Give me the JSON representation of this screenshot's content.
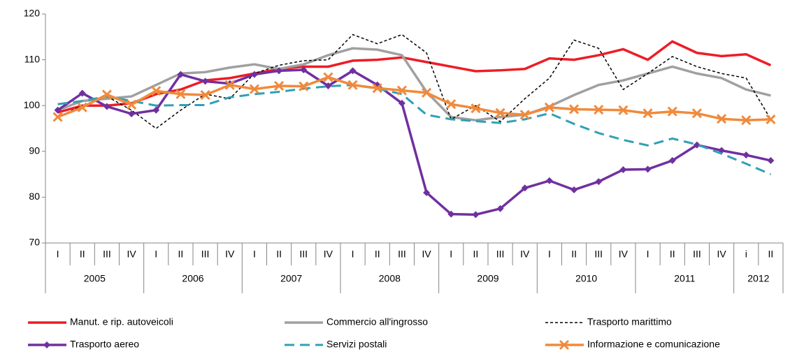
{
  "chart_data": {
    "type": "line",
    "category_groups": [
      {
        "label": "2005",
        "categories": [
          "I",
          "II",
          "III",
          "IV"
        ]
      },
      {
        "label": "2006",
        "categories": [
          "I",
          "II",
          "III",
          "IV"
        ]
      },
      {
        "label": "2007",
        "categories": [
          "I",
          "II",
          "III",
          "IV"
        ]
      },
      {
        "label": "2008",
        "categories": [
          "I",
          "II",
          "III",
          "IV"
        ]
      },
      {
        "label": "2009",
        "categories": [
          "I",
          "II",
          "III",
          "IV"
        ]
      },
      {
        "label": "2010",
        "categories": [
          "I",
          "II",
          "III",
          "IV"
        ]
      },
      {
        "label": "2011",
        "categories": [
          "I",
          "II",
          "III",
          "IV"
        ]
      },
      {
        "label": "2012",
        "categories": [
          "i",
          "II"
        ]
      }
    ],
    "series": [
      {
        "name": "Manut. e rip. autoveicoli",
        "color": "#ee1c25",
        "line_style": "solid",
        "values": [
          98.5,
          100,
          100,
          100.5,
          102.5,
          103.5,
          105.5,
          106,
          107,
          108,
          108.5,
          108.5,
          109.8,
          110,
          110.5,
          109.5,
          108.5,
          107.5,
          107.7,
          108,
          110.3,
          110,
          111,
          112.3,
          110,
          114,
          111.5,
          110.8,
          111.2,
          108.8
        ]
      },
      {
        "name": "Commercio all'ingrosso",
        "color": "#a0a0a0",
        "line_style": "solid",
        "values": [
          99,
          101,
          101.5,
          102,
          104.5,
          107,
          107.3,
          108.3,
          109,
          108,
          109,
          111,
          112.5,
          112.2,
          111,
          103,
          97.5,
          96.8,
          97.5,
          98,
          99.8,
          102.3,
          104.5,
          105.5,
          107,
          108.5,
          107,
          106,
          103.5,
          102.2
        ]
      },
      {
        "name": "Trasporto marittimo",
        "color": "#000000",
        "line_style": "dotted",
        "values": [
          97.5,
          100,
          102,
          99,
          95,
          99,
          102.5,
          101.5,
          107,
          108.8,
          109.8,
          110,
          115.5,
          113.5,
          115.5,
          111.5,
          97,
          100,
          96.5,
          101.5,
          106,
          114.3,
          112.5,
          103.5,
          107,
          110.7,
          108.5,
          107,
          106,
          97
        ]
      },
      {
        "name": "Trasporto aereo",
        "color": "#7030a0",
        "line_style": "solid",
        "marker": "diamond",
        "values": [
          99,
          102.7,
          99.8,
          98.2,
          99,
          106.8,
          105.3,
          104.8,
          106.8,
          107.6,
          107.8,
          104.3,
          107.6,
          104.5,
          100.5,
          81,
          76.3,
          76.2,
          77.5,
          82,
          83.6,
          81.6,
          83.4,
          86,
          86.1,
          88,
          91.4,
          90.2,
          89.2,
          88
        ]
      },
      {
        "name": "Servizi postali",
        "color": "#31a0b4",
        "line_style": "dashed",
        "values": [
          100.3,
          101,
          102,
          101,
          100,
          100.1,
          100.1,
          101.8,
          102.5,
          103,
          103.7,
          104.2,
          104.5,
          103.7,
          102.5,
          98,
          97,
          96.6,
          96.2,
          97,
          98.3,
          96,
          94,
          92.5,
          91.3,
          92.8,
          91.5,
          89.5,
          87.3,
          85
        ]
      },
      {
        "name": "Informazione e comunicazione",
        "color": "#f08a3c",
        "line_style": "solid",
        "marker": "x",
        "values": [
          97.5,
          99.6,
          102.4,
          100.2,
          103.2,
          102.5,
          102.3,
          104.5,
          103.6,
          104.3,
          104.2,
          106.2,
          104.5,
          103.8,
          103.3,
          102.8,
          100.3,
          99.4,
          98.4,
          98,
          99.6,
          99.2,
          99.1,
          99,
          98.3,
          98.7,
          98.3,
          97.1,
          96.8,
          97
        ]
      }
    ],
    "ylim": [
      70,
      120
    ],
    "yticks": [
      70,
      80,
      90,
      100,
      110,
      120
    ],
    "legend": "bottom"
  }
}
